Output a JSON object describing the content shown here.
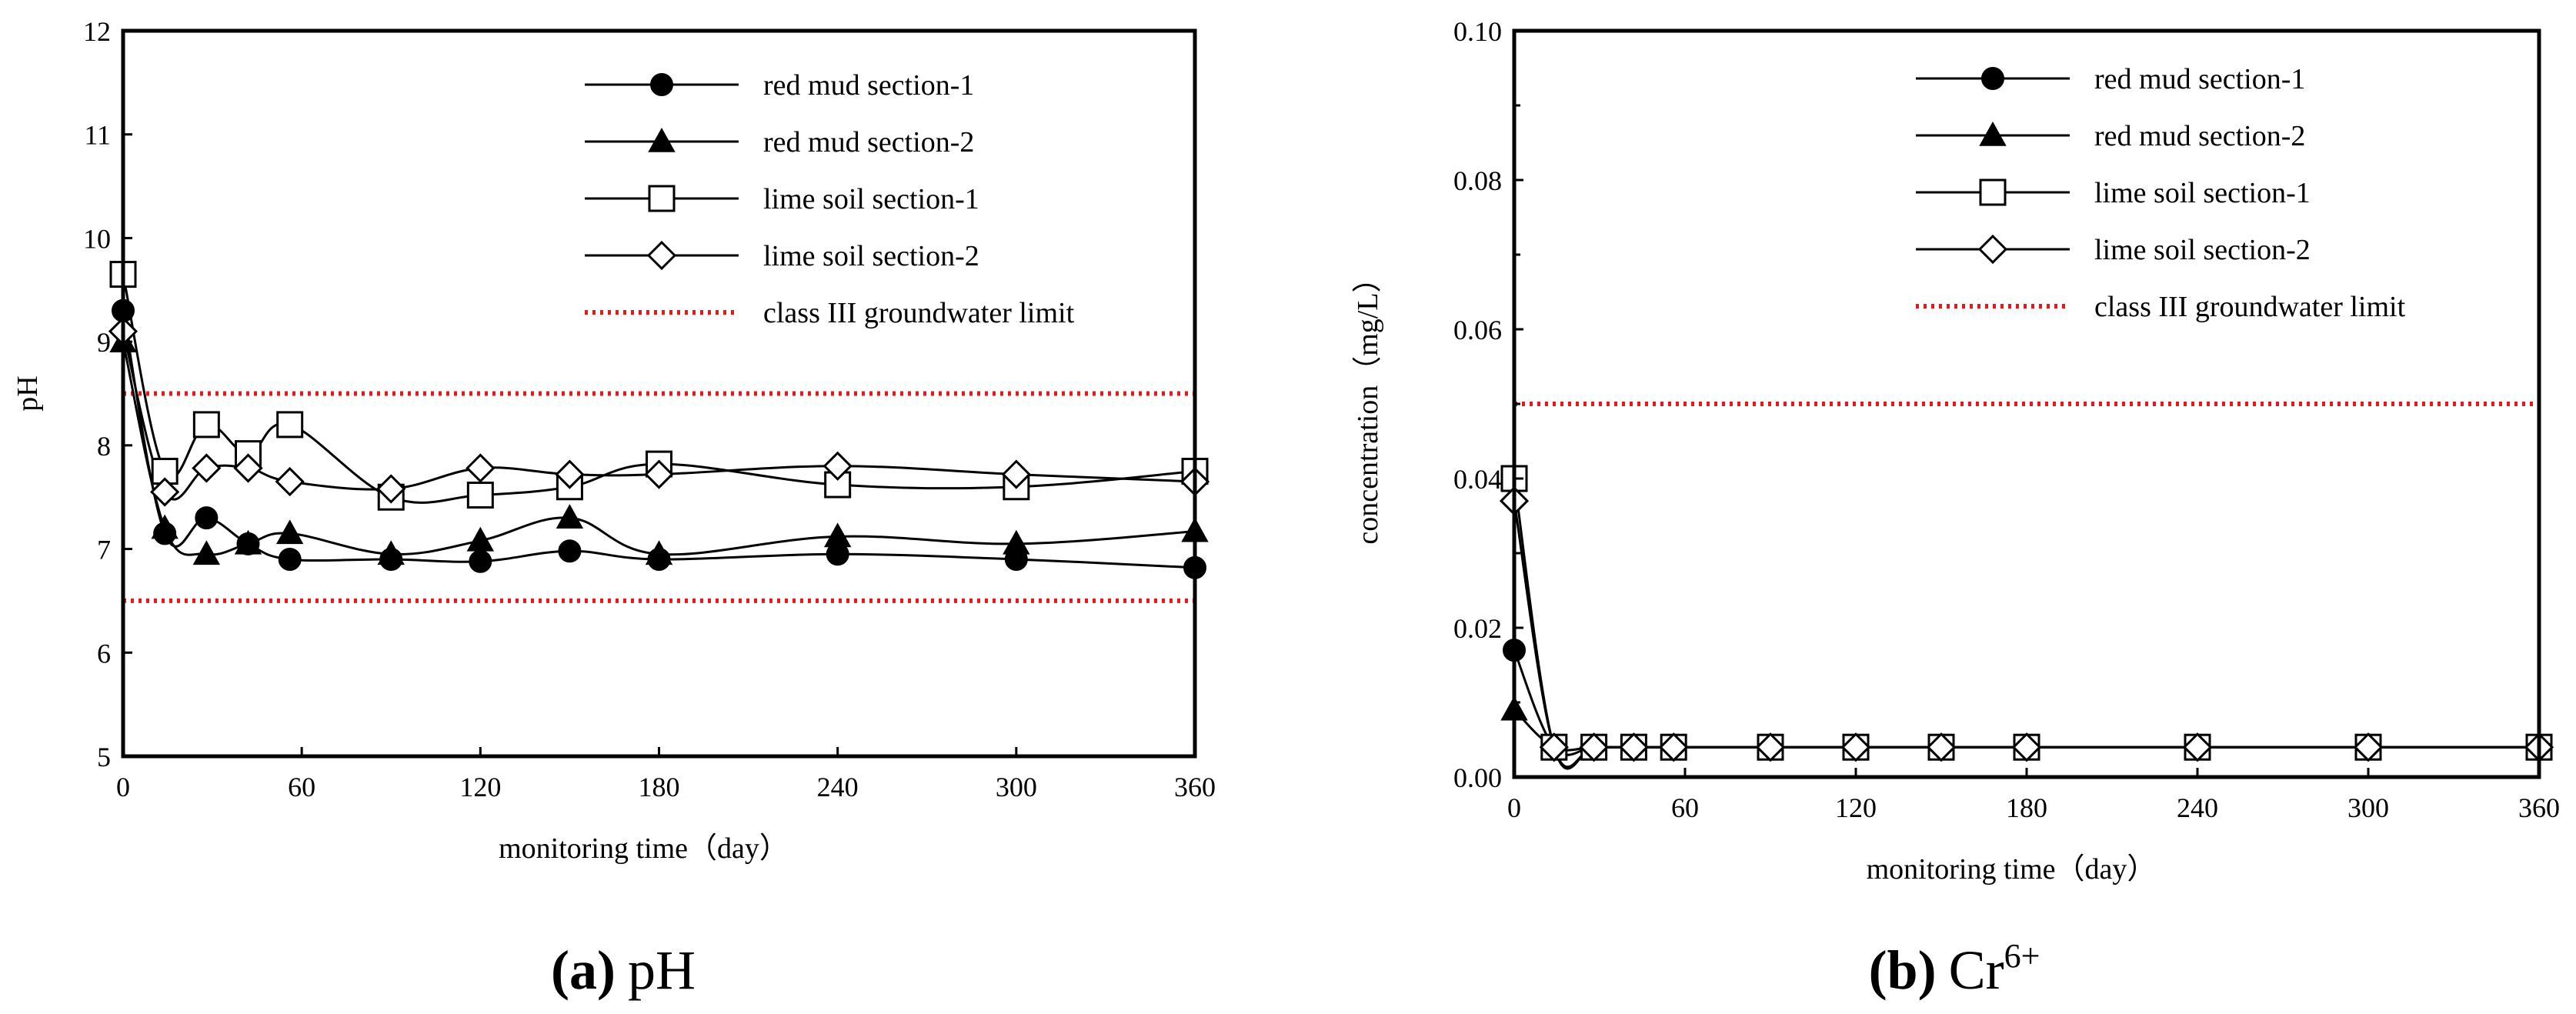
{
  "figure": {
    "panels": [
      {
        "caption_letter": "(a)",
        "caption_text": "pH",
        "caption_sup": ""
      },
      {
        "caption_letter": "(b)",
        "caption_text": "Cr",
        "caption_sup": "6+"
      }
    ]
  },
  "chart_data": [
    {
      "type": "line",
      "title": "(a) pH",
      "xlabel": "monitoring time（day）",
      "ylabel": "pH",
      "xlim": [
        0,
        360
      ],
      "ylim": [
        5,
        12
      ],
      "xticks": [
        0,
        60,
        120,
        180,
        240,
        300,
        360
      ],
      "yticks": [
        5,
        6,
        7,
        8,
        9,
        10,
        11,
        12
      ],
      "ytick_labels": [
        "5",
        "6",
        "7",
        "8",
        "9",
        "10",
        "11",
        "12"
      ],
      "legend_position": "top-right",
      "series": [
        {
          "name": "red mud section-1",
          "marker": "circle-filled",
          "x": [
            0,
            14,
            28,
            42,
            56,
            90,
            120,
            150,
            180,
            240,
            300,
            360
          ],
          "y": [
            9.3,
            7.15,
            7.3,
            7.05,
            6.9,
            6.9,
            6.88,
            6.98,
            6.9,
            6.95,
            6.9,
            6.82
          ]
        },
        {
          "name": "red mud section-2",
          "marker": "triangle-filled",
          "x": [
            0,
            14,
            28,
            42,
            56,
            90,
            120,
            150,
            180,
            240,
            300,
            360
          ],
          "y": [
            9.0,
            7.2,
            6.95,
            7.05,
            7.15,
            6.95,
            7.08,
            7.3,
            6.95,
            7.12,
            7.05,
            7.17
          ]
        },
        {
          "name": "lime soil section-1",
          "marker": "square-open",
          "x": [
            0,
            14,
            28,
            42,
            56,
            90,
            120,
            150,
            180,
            240,
            300,
            360
          ],
          "y": [
            9.65,
            7.75,
            8.2,
            7.92,
            8.2,
            7.5,
            7.52,
            7.6,
            7.82,
            7.62,
            7.6,
            7.75
          ]
        },
        {
          "name": "lime soil section-2",
          "marker": "diamond-open",
          "x": [
            0,
            14,
            28,
            42,
            56,
            90,
            120,
            150,
            180,
            240,
            300,
            360
          ],
          "y": [
            9.1,
            7.55,
            7.78,
            7.78,
            7.65,
            7.58,
            7.78,
            7.72,
            7.72,
            7.8,
            7.72,
            7.65
          ]
        }
      ],
      "reference_lines": [
        {
          "name": "class III groundwater limit",
          "y": 8.5,
          "color": "#e31a1c",
          "style": "dotted"
        },
        {
          "name": "",
          "y": 6.5,
          "color": "#e31a1c",
          "style": "dotted"
        }
      ]
    },
    {
      "type": "line",
      "title": "(b) Cr6+",
      "xlabel": "monitoring time（day）",
      "ylabel": "concentration（mg/L）",
      "xlim": [
        0,
        360
      ],
      "ylim": [
        0,
        0.1
      ],
      "xticks": [
        0,
        60,
        120,
        180,
        240,
        300,
        360
      ],
      "yticks": [
        0,
        0.02,
        0.04,
        0.06,
        0.08,
        0.1
      ],
      "ytick_labels": [
        "0.00",
        "0.02",
        "0.04",
        "0.06",
        "0.08",
        "0.10"
      ],
      "legend_position": "top-right",
      "series": [
        {
          "name": "red mud section-1",
          "marker": "circle-filled",
          "x": [
            0,
            14,
            28,
            42,
            56,
            90,
            120,
            150,
            180,
            240,
            300,
            360
          ],
          "y": [
            0.017,
            0.004,
            0.004,
            0.004,
            0.004,
            0.004,
            0.004,
            0.004,
            0.004,
            0.004,
            0.004,
            0.004
          ]
        },
        {
          "name": "red mud section-2",
          "marker": "triangle-filled",
          "x": [
            0,
            14,
            28,
            42,
            56,
            90,
            120,
            150,
            180,
            240,
            300,
            360
          ],
          "y": [
            0.009,
            0.004,
            0.004,
            0.004,
            0.004,
            0.004,
            0.004,
            0.004,
            0.004,
            0.004,
            0.004,
            0.004
          ]
        },
        {
          "name": "lime soil section-1",
          "marker": "square-open",
          "x": [
            0,
            14,
            28,
            42,
            56,
            90,
            120,
            150,
            180,
            240,
            300,
            360
          ],
          "y": [
            0.04,
            0.004,
            0.004,
            0.004,
            0.004,
            0.004,
            0.004,
            0.004,
            0.004,
            0.004,
            0.004,
            0.004
          ]
        },
        {
          "name": "lime soil section-2",
          "marker": "diamond-open",
          "x": [
            0,
            14,
            28,
            42,
            56,
            90,
            120,
            150,
            180,
            240,
            300,
            360
          ],
          "y": [
            0.037,
            0.004,
            0.004,
            0.004,
            0.004,
            0.004,
            0.004,
            0.004,
            0.004,
            0.004,
            0.004,
            0.004
          ]
        }
      ],
      "reference_lines": [
        {
          "name": "class III groundwater limit",
          "y": 0.05,
          "color": "#e31a1c",
          "style": "dotted"
        }
      ]
    }
  ]
}
